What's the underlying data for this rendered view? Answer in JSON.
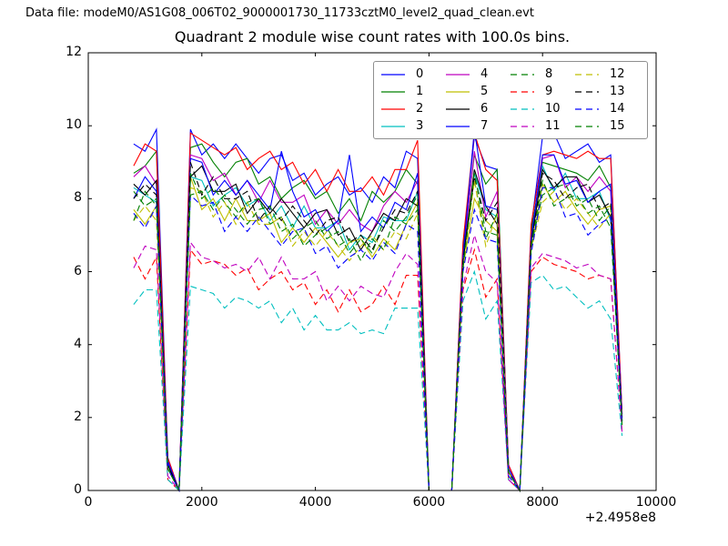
{
  "header": {
    "data_file_label": "Data file: modeM0/AS1G08_006T02_9000001730_11733cztM0_level2_quad_clean.evt"
  },
  "chart_data": {
    "type": "line",
    "title": "Quadrant 2 module wise count rates with 100.0s bins.",
    "xlabel": "",
    "ylabel": "",
    "xlim": [
      0,
      10000
    ],
    "ylim": [
      0,
      12
    ],
    "xticks": [
      0,
      2000,
      4000,
      6000,
      8000,
      10000
    ],
    "yticks": [
      0,
      2,
      4,
      6,
      8,
      10,
      12
    ],
    "x_offset_label": "+2.4958e8",
    "grid": false,
    "legend_position": "upper center",
    "legend_columns": 4,
    "bin_seconds": 100.0,
    "x": [
      800,
      1000,
      1200,
      1400,
      1600,
      1800,
      2000,
      2200,
      2400,
      2600,
      2800,
      3000,
      3200,
      3400,
      3600,
      3800,
      4000,
      4200,
      4400,
      4600,
      4800,
      5000,
      5200,
      5400,
      5600,
      5800,
      6000,
      6200,
      6400,
      6600,
      6800,
      7000,
      7200,
      7400,
      7600,
      7800,
      8000,
      8200,
      8400,
      8600,
      8800,
      9000,
      9200,
      9400
    ],
    "series": [
      {
        "name": "0",
        "color": "#0000ff",
        "style": "solid",
        "values": [
          9.5,
          9.3,
          9.9,
          0.9,
          0,
          9.9,
          9.2,
          9.5,
          9.1,
          9.5,
          9.1,
          8.7,
          9.1,
          9.2,
          8.5,
          8.7,
          8.1,
          8.4,
          8.6,
          8.1,
          8.3,
          7.9,
          8.6,
          8.3,
          9.3,
          9.1,
          0,
          0,
          0,
          6.7,
          9.7,
          8.9,
          8.8,
          0.7,
          0,
          7.2,
          9.7,
          9.8,
          9.1,
          9.3,
          9.5,
          9.0,
          9.2,
          2.1
        ]
      },
      {
        "name": "1",
        "color": "#008000",
        "style": "solid",
        "values": [
          8.7,
          8.9,
          9.3,
          0.8,
          0,
          9.4,
          9.5,
          9.0,
          8.6,
          9.0,
          9.1,
          8.4,
          8.6,
          8.0,
          8.3,
          8.5,
          8.0,
          8.2,
          7.6,
          8.0,
          7.4,
          8.2,
          7.9,
          8.2,
          8.8,
          8.4,
          0,
          0,
          0,
          6.6,
          9.2,
          8.4,
          8.8,
          0.6,
          0,
          7.1,
          9.0,
          8.9,
          8.8,
          8.7,
          8.5,
          8.9,
          8.3,
          2.0
        ]
      },
      {
        "name": "2",
        "color": "#ff0000",
        "style": "solid",
        "values": [
          8.9,
          9.5,
          9.3,
          0.9,
          0,
          9.8,
          9.6,
          9.4,
          9.2,
          9.4,
          8.8,
          9.1,
          9.3,
          8.8,
          9.0,
          8.4,
          8.8,
          8.2,
          8.8,
          8.2,
          8.2,
          8.6,
          8.1,
          8.8,
          8.8,
          9.6,
          0,
          0,
          0,
          6.8,
          9.8,
          8.8,
          8.5,
          0.7,
          0,
          7.3,
          9.2,
          9.3,
          9.2,
          9.1,
          9.3,
          9.1,
          9.1,
          2.1
        ]
      },
      {
        "name": "3",
        "color": "#00bfbf",
        "style": "solid",
        "values": [
          8.3,
          8.1,
          7.9,
          0.7,
          0,
          8.6,
          8.5,
          7.8,
          8.1,
          8.3,
          7.8,
          8.0,
          7.4,
          7.8,
          7.2,
          7.8,
          7.2,
          7.2,
          7.4,
          6.6,
          7.0,
          6.8,
          7.5,
          7.4,
          7.4,
          8.2,
          0,
          0,
          0,
          6.3,
          8.7,
          7.7,
          7.5,
          0.5,
          0,
          6.8,
          8.9,
          8.2,
          8.7,
          8.0,
          8.0,
          8.2,
          7.4,
          1.9
        ]
      },
      {
        "name": "4",
        "color": "#bf00bf",
        "style": "solid",
        "values": [
          8.6,
          8.9,
          8.4,
          0.8,
          0,
          9.2,
          9.1,
          8.5,
          8.7,
          8.1,
          8.5,
          7.9,
          8.5,
          7.9,
          7.9,
          8.1,
          7.3,
          7.7,
          7.3,
          7.7,
          7.3,
          7.1,
          7.8,
          8.2,
          7.9,
          8.5,
          0,
          0,
          0,
          6.4,
          9.3,
          7.5,
          8.2,
          0.6,
          0,
          6.9,
          9.1,
          9.2,
          8.3,
          8.6,
          8.2,
          8.6,
          8.2,
          2.0
        ]
      },
      {
        "name": "5",
        "color": "#bfbf00",
        "style": "solid",
        "values": [
          7.7,
          7.3,
          7.8,
          0.6,
          0,
          8.6,
          7.7,
          8.0,
          7.4,
          8.0,
          7.4,
          7.4,
          7.6,
          6.8,
          7.2,
          6.8,
          7.2,
          6.8,
          6.4,
          6.8,
          6.9,
          6.4,
          6.9,
          6.6,
          7.3,
          7.9,
          0,
          0,
          0,
          6.1,
          8.0,
          7.4,
          7.1,
          0.5,
          0,
          6.6,
          8.4,
          7.9,
          8.2,
          7.7,
          7.3,
          7.7,
          7.8,
          1.8
        ]
      },
      {
        "name": "6",
        "color": "#000000",
        "style": "solid",
        "values": [
          8.4,
          8.1,
          8.5,
          0.7,
          0,
          8.6,
          8.9,
          8.2,
          8.2,
          8.4,
          7.6,
          8.0,
          7.6,
          8.0,
          7.6,
          7.2,
          7.6,
          7.7,
          7.0,
          7.2,
          6.6,
          7.1,
          7.6,
          7.4,
          8.0,
          7.8,
          0,
          0,
          0,
          6.3,
          8.8,
          7.8,
          7.3,
          0.5,
          0,
          6.8,
          8.8,
          8.3,
          8.6,
          8.6,
          7.9,
          8.1,
          7.5,
          1.9
        ]
      },
      {
        "name": "7",
        "color": "#0000ff",
        "style": "solid",
        "values": [
          8.0,
          8.6,
          8.2,
          0.8,
          0,
          9.1,
          9.0,
          8.1,
          8.5,
          8.1,
          8.5,
          8.1,
          7.7,
          9.3,
          8.2,
          7.5,
          7.7,
          7.1,
          7.4,
          9.2,
          7.1,
          7.5,
          7.2,
          7.9,
          7.7,
          8.7,
          0,
          0,
          0,
          6.4,
          9.9,
          7.8,
          7.7,
          0.6,
          0,
          6.9,
          9.2,
          9.2,
          8.4,
          8.5,
          7.9,
          8.2,
          8.4,
          1.9
        ]
      },
      {
        "name": "8",
        "color": "#008000",
        "style": "dashed",
        "values": [
          8.2,
          7.8,
          8.0,
          0.6,
          0,
          8.7,
          8.0,
          8.3,
          7.9,
          7.5,
          7.9,
          8.0,
          7.3,
          7.5,
          6.9,
          7.2,
          7.4,
          6.9,
          7.1,
          6.5,
          6.9,
          6.5,
          7.4,
          7.1,
          7.5,
          8.1,
          0,
          0,
          0,
          6.2,
          8.5,
          6.9,
          7.6,
          0.5,
          0,
          6.7,
          8.1,
          8.3,
          8.4,
          7.8,
          8.0,
          7.4,
          7.8,
          1.8
        ]
      },
      {
        "name": "9",
        "color": "#ff0000",
        "style": "dashed",
        "values": [
          6.4,
          5.8,
          6.4,
          0.3,
          0,
          6.6,
          6.2,
          6.3,
          6.2,
          5.9,
          6.1,
          5.5,
          5.8,
          6.0,
          5.5,
          5.7,
          5.1,
          5.5,
          4.9,
          5.5,
          4.9,
          5.1,
          5.6,
          5.1,
          5.9,
          5.9,
          0,
          0,
          0,
          5.5,
          6.6,
          5.3,
          5.8,
          0.3,
          0,
          6.0,
          6.4,
          6.2,
          6.1,
          6.0,
          5.8,
          5.9,
          5.8,
          1.6
        ]
      },
      {
        "name": "10",
        "color": "#00bfbf",
        "style": "dashed",
        "values": [
          5.1,
          5.5,
          5.5,
          0.3,
          0,
          5.6,
          5.5,
          5.4,
          5.0,
          5.3,
          5.2,
          5.0,
          5.2,
          4.6,
          5.0,
          4.4,
          4.8,
          4.4,
          4.4,
          4.6,
          4.3,
          4.4,
          4.3,
          5.0,
          5.0,
          5.0,
          0,
          0,
          0,
          5.2,
          6.0,
          4.7,
          5.2,
          0.3,
          0,
          5.7,
          5.9,
          5.5,
          5.6,
          5.3,
          5.0,
          5.2,
          4.7,
          1.5
        ]
      },
      {
        "name": "11",
        "color": "#bf00bf",
        "style": "dashed",
        "values": [
          6.1,
          6.7,
          6.6,
          0.4,
          0,
          6.8,
          6.4,
          6.3,
          6.1,
          6.2,
          6.0,
          6.4,
          5.8,
          6.4,
          5.8,
          5.8,
          6.0,
          5.2,
          5.6,
          5.2,
          5.6,
          5.4,
          5.3,
          6.0,
          6.5,
          6.2,
          0,
          0,
          0,
          5.6,
          7.0,
          6.0,
          5.7,
          0.3,
          0,
          6.1,
          6.5,
          6.4,
          6.3,
          6.1,
          6.2,
          5.9,
          5.8,
          1.6
        ]
      },
      {
        "name": "12",
        "color": "#bfbf00",
        "style": "dashed",
        "values": [
          7.4,
          7.8,
          7.4,
          0.6,
          0,
          8.3,
          8.2,
          7.5,
          7.9,
          7.3,
          7.9,
          7.3,
          7.3,
          7.5,
          6.7,
          7.1,
          6.7,
          7.1,
          6.7,
          6.3,
          6.7,
          7.0,
          6.6,
          7.1,
          6.9,
          7.6,
          0,
          0,
          0,
          6.1,
          8.5,
          6.7,
          7.6,
          0.5,
          0,
          6.6,
          7.9,
          8.2,
          7.7,
          8.0,
          7.6,
          7.2,
          7.6,
          1.8
        ]
      },
      {
        "name": "13",
        "color": "#000000",
        "style": "dashed",
        "values": [
          8.0,
          8.4,
          8.1,
          0.7,
          0,
          9.0,
          8.1,
          8.6,
          8.0,
          8.0,
          8.2,
          7.4,
          7.8,
          7.4,
          7.8,
          7.4,
          7.0,
          7.4,
          7.5,
          6.8,
          7.0,
          6.6,
          7.2,
          7.7,
          7.6,
          8.2,
          0,
          0,
          0,
          6.3,
          8.6,
          7.4,
          7.9,
          0.5,
          0,
          6.8,
          8.7,
          8.5,
          8.0,
          8.3,
          8.4,
          7.7,
          7.9,
          1.9
        ]
      },
      {
        "name": "14",
        "color": "#0000ff",
        "style": "dashed",
        "values": [
          7.6,
          7.2,
          7.8,
          0.6,
          0,
          8.1,
          7.8,
          7.9,
          7.1,
          7.5,
          7.1,
          7.5,
          7.1,
          6.7,
          7.1,
          7.2,
          6.5,
          6.7,
          6.1,
          6.4,
          6.6,
          6.3,
          6.8,
          6.5,
          7.3,
          7.1,
          0,
          0,
          0,
          6.0,
          7.7,
          6.9,
          6.8,
          0.4,
          0,
          6.5,
          8.3,
          8.3,
          7.5,
          7.6,
          7.0,
          7.3,
          7.5,
          1.8
        ]
      },
      {
        "name": "15",
        "color": "#008000",
        "style": "dashed",
        "values": [
          7.4,
          8.2,
          7.8,
          0.6,
          0,
          8.1,
          8.2,
          7.7,
          8.1,
          7.7,
          7.3,
          7.7,
          7.8,
          7.1,
          7.3,
          6.7,
          7.0,
          7.2,
          6.7,
          6.9,
          6.3,
          6.9,
          6.6,
          7.5,
          7.3,
          7.7,
          0,
          0,
          0,
          6.1,
          8.7,
          7.1,
          7.0,
          0.5,
          0,
          6.7,
          8.5,
          7.8,
          8.0,
          8.1,
          7.6,
          7.8,
          7.2,
          1.8
        ]
      }
    ]
  }
}
